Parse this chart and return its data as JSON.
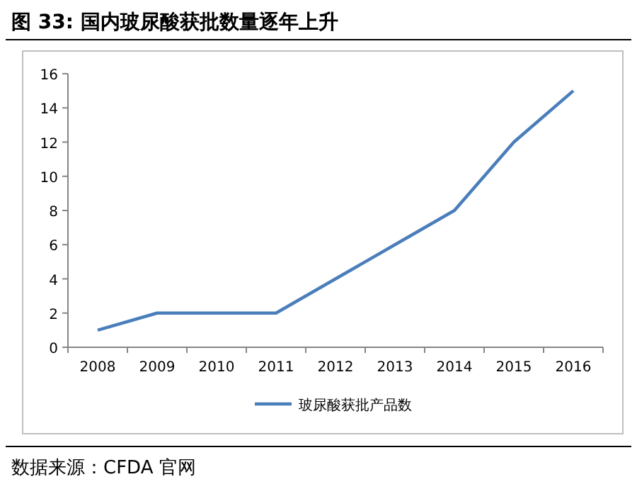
{
  "chart_data": {
    "type": "line",
    "title": "图 33: 国内玻尿酸获批数量逐年上升",
    "categories": [
      "2008",
      "2009",
      "2010",
      "2011",
      "2012",
      "2013",
      "2014",
      "2015",
      "2016"
    ],
    "series": [
      {
        "name": "玻尿酸获批产品数",
        "color": "#4a7ebb",
        "values": [
          1,
          2,
          2,
          2,
          4,
          6,
          8,
          12,
          15
        ]
      }
    ],
    "ylim": [
      0,
      16
    ],
    "yticks": [
      0,
      2,
      4,
      6,
      8,
      10,
      12,
      14,
      16
    ],
    "grid": false,
    "legend": "bottom",
    "marker": "none",
    "line_style": "solid",
    "annotations": [
      "数据来源：CFDA 官网"
    ]
  }
}
